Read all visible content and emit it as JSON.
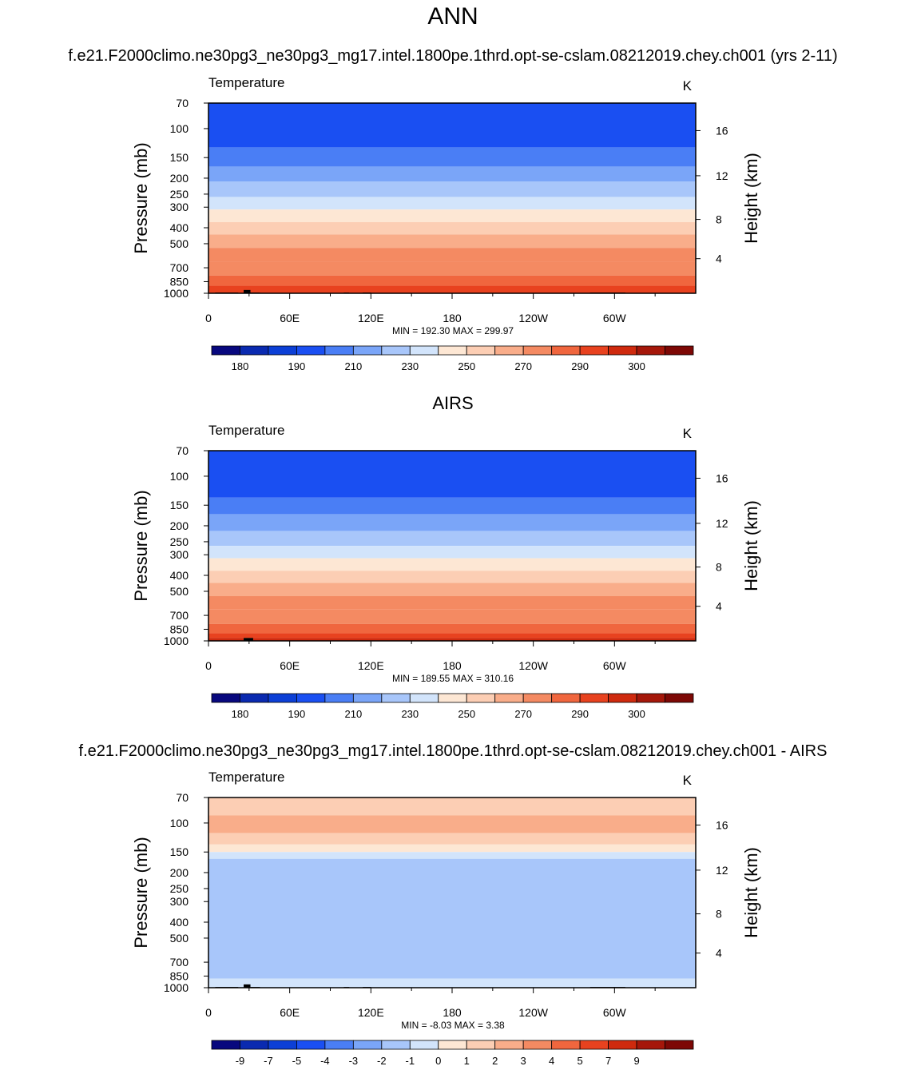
{
  "page": {
    "title": "ANN",
    "case_title": "f.e21.F2000climo.ne30pg3_ne30pg3_mg17.intel.1800pe.1thrd.opt-se-cslam.08212019.chey.ch001 (yrs 2-11)"
  },
  "colors": {
    "temp_palette": [
      "#08087e",
      "#0a2ab0",
      "#0c3fd6",
      "#1a4ff2",
      "#4a7ef5",
      "#7aa5f8",
      "#a8c6fa",
      "#d2e4fb",
      "#fde7d4",
      "#fcceb4",
      "#f9ad8a",
      "#f48a62",
      "#f0663e",
      "#e8421f",
      "#cf2a0e",
      "#a5170a",
      "#7d0805"
    ],
    "diff_palette": [
      "#08087e",
      "#0a2ab0",
      "#0c3fd6",
      "#1a4ff2",
      "#4a7ef5",
      "#7aa5f8",
      "#a8c6fa",
      "#d2e4fb",
      "#fde7d4",
      "#fcceb4",
      "#f9ad8a",
      "#f48a62",
      "#f0663e",
      "#e8421f",
      "#cf2a0e",
      "#a5170a",
      "#7d0805"
    ],
    "land": "#000000"
  },
  "chart_data": [
    {
      "type": "heatmap",
      "panel_title": "",
      "variable_label": "Temperature",
      "units": "K",
      "ylabel": "Pressure (mb)",
      "ylabel_right": "Height (km)",
      "x_ticks": [
        "0",
        "60E",
        "120E",
        "180",
        "120W",
        "60W"
      ],
      "x_tick_values": [
        0,
        60,
        120,
        180,
        240,
        300
      ],
      "xlim": [
        0,
        360
      ],
      "y_ticks": [
        "70",
        "100",
        "150",
        "200",
        "250",
        "300",
        "400",
        "500",
        "700",
        "850",
        "1000"
      ],
      "y_tick_values": [
        70,
        100,
        150,
        200,
        250,
        300,
        400,
        500,
        700,
        850,
        1000
      ],
      "ylim": [
        70,
        1000
      ],
      "y_scale": "log",
      "right_ticks": [
        "16",
        "12",
        "8",
        "4"
      ],
      "right_tick_values": [
        16,
        12,
        8,
        4
      ],
      "stats": "MIN = 192.30  MAX = 299.97",
      "min": 192.3,
      "max": 299.97,
      "colorbar_labels": [
        "180",
        "190",
        "210",
        "230",
        "250",
        "270",
        "290",
        "300"
      ],
      "approx_bands": [
        {
          "pressure_top": 70,
          "pressure_bottom": 130,
          "value": 195
        },
        {
          "pressure_top": 130,
          "pressure_bottom": 170,
          "value": 205
        },
        {
          "pressure_top": 170,
          "pressure_bottom": 210,
          "value": 215
        },
        {
          "pressure_top": 210,
          "pressure_bottom": 260,
          "value": 225
        },
        {
          "pressure_top": 260,
          "pressure_bottom": 310,
          "value": 235
        },
        {
          "pressure_top": 310,
          "pressure_bottom": 370,
          "value": 245
        },
        {
          "pressure_top": 370,
          "pressure_bottom": 440,
          "value": 255
        },
        {
          "pressure_top": 440,
          "pressure_bottom": 530,
          "value": 262
        },
        {
          "pressure_top": 530,
          "pressure_bottom": 640,
          "value": 270
        },
        {
          "pressure_top": 640,
          "pressure_bottom": 780,
          "value": 278
        },
        {
          "pressure_top": 780,
          "pressure_bottom": 900,
          "value": 285
        },
        {
          "pressure_top": 900,
          "pressure_bottom": 1000,
          "value": 292
        }
      ]
    },
    {
      "type": "heatmap",
      "panel_title": "AIRS",
      "variable_label": "Temperature",
      "units": "K",
      "ylabel": "Pressure (mb)",
      "ylabel_right": "Height (km)",
      "x_ticks": [
        "0",
        "60E",
        "120E",
        "180",
        "120W",
        "60W"
      ],
      "x_tick_values": [
        0,
        60,
        120,
        180,
        240,
        300
      ],
      "xlim": [
        0,
        360
      ],
      "y_ticks": [
        "70",
        "100",
        "150",
        "200",
        "250",
        "300",
        "400",
        "500",
        "700",
        "850",
        "1000"
      ],
      "y_tick_values": [
        70,
        100,
        150,
        200,
        250,
        300,
        400,
        500,
        700,
        850,
        1000
      ],
      "ylim": [
        70,
        1000
      ],
      "y_scale": "log",
      "right_ticks": [
        "16",
        "12",
        "8",
        "4"
      ],
      "right_tick_values": [
        16,
        12,
        8,
        4
      ],
      "stats": "MIN = 189.55  MAX = 310.16",
      "min": 189.55,
      "max": 310.16,
      "colorbar_labels": [
        "180",
        "190",
        "210",
        "230",
        "250",
        "270",
        "290",
        "300"
      ],
      "approx_bands": [
        {
          "pressure_top": 70,
          "pressure_bottom": 135,
          "value": 195
        },
        {
          "pressure_top": 135,
          "pressure_bottom": 170,
          "value": 205
        },
        {
          "pressure_top": 170,
          "pressure_bottom": 215,
          "value": 215
        },
        {
          "pressure_top": 215,
          "pressure_bottom": 265,
          "value": 225
        },
        {
          "pressure_top": 265,
          "pressure_bottom": 315,
          "value": 235
        },
        {
          "pressure_top": 315,
          "pressure_bottom": 375,
          "value": 245
        },
        {
          "pressure_top": 375,
          "pressure_bottom": 445,
          "value": 255
        },
        {
          "pressure_top": 445,
          "pressure_bottom": 535,
          "value": 262
        },
        {
          "pressure_top": 535,
          "pressure_bottom": 645,
          "value": 270
        },
        {
          "pressure_top": 645,
          "pressure_bottom": 790,
          "value": 278
        },
        {
          "pressure_top": 790,
          "pressure_bottom": 900,
          "value": 285
        },
        {
          "pressure_top": 900,
          "pressure_bottom": 960,
          "value": 292
        },
        {
          "pressure_top": 960,
          "pressure_bottom": 1000,
          "value": 298
        }
      ]
    },
    {
      "type": "heatmap",
      "panel_title": "f.e21.F2000climo.ne30pg3_ne30pg3_mg17.intel.1800pe.1thrd.opt-se-cslam.08212019.chey.ch001 - AIRS",
      "variable_label": "Temperature",
      "units": "K",
      "ylabel": "Pressure (mb)",
      "ylabel_right": "Height (km)",
      "x_ticks": [
        "0",
        "60E",
        "120E",
        "180",
        "120W",
        "60W"
      ],
      "x_tick_values": [
        0,
        60,
        120,
        180,
        240,
        300
      ],
      "xlim": [
        0,
        360
      ],
      "y_ticks": [
        "70",
        "100",
        "150",
        "200",
        "250",
        "300",
        "400",
        "500",
        "700",
        "850",
        "1000"
      ],
      "y_tick_values": [
        70,
        100,
        150,
        200,
        250,
        300,
        400,
        500,
        700,
        850,
        1000
      ],
      "ylim": [
        70,
        1000
      ],
      "y_scale": "log",
      "right_ticks": [
        "16",
        "12",
        "8",
        "4"
      ],
      "right_tick_values": [
        16,
        12,
        8,
        4
      ],
      "stats": "MIN =  -8.03  MAX =   3.38",
      "min": -8.03,
      "max": 3.38,
      "colorbar_labels": [
        "-9",
        "-7",
        "-5",
        "-4",
        "-3",
        "-2",
        "-1",
        "0",
        "1",
        "2",
        "3",
        "4",
        "5",
        "7",
        "9"
      ],
      "approx_bands": [
        {
          "pressure_top": 70,
          "pressure_bottom": 90,
          "value": 1.5
        },
        {
          "pressure_top": 90,
          "pressure_bottom": 115,
          "value": 2.5
        },
        {
          "pressure_top": 115,
          "pressure_bottom": 135,
          "value": 1.5
        },
        {
          "pressure_top": 135,
          "pressure_bottom": 150,
          "value": 0.5
        },
        {
          "pressure_top": 150,
          "pressure_bottom": 165,
          "value": -0.5
        },
        {
          "pressure_top": 165,
          "pressure_bottom": 880,
          "value": -1.5
        },
        {
          "pressure_top": 880,
          "pressure_bottom": 1000,
          "value": -0.5
        }
      ]
    }
  ]
}
